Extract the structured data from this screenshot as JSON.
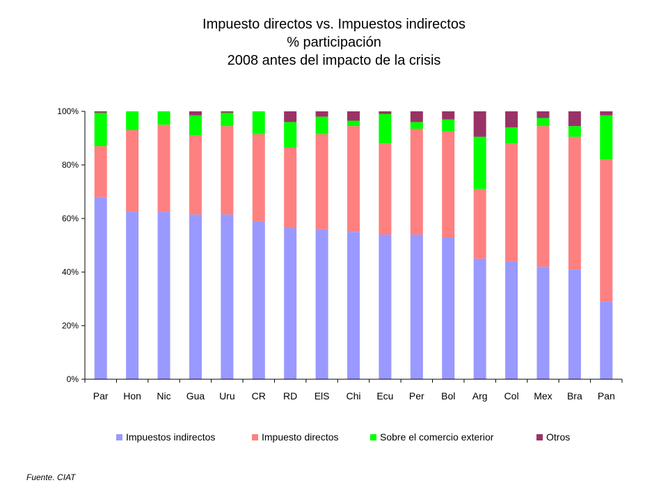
{
  "chart_data": {
    "type": "bar",
    "stacked": true,
    "percent_stacked": true,
    "title": [
      "Impuesto directos vs. Impuestos indirectos",
      "% participación",
      "2008 antes del impacto de la crisis"
    ],
    "categories": [
      "Par",
      "Hon",
      "Nic",
      "Gua",
      "Uru",
      "CR",
      "RD",
      "ElS",
      "Chi",
      "Ecu",
      "Per",
      "Bol",
      "Arg",
      "Col",
      "Mex",
      "Bra",
      "Pan"
    ],
    "series": [
      {
        "name": "Impuestos indirectos",
        "color": "#9999ff",
        "values": [
          68,
          62.5,
          62.5,
          61.5,
          61.5,
          59,
          56.5,
          56,
          55,
          54,
          54,
          53,
          45,
          44,
          42,
          41,
          29
        ]
      },
      {
        "name": "Impuesto directos",
        "color": "#ff8080",
        "values": [
          19,
          30.5,
          32.5,
          29.5,
          33,
          32.5,
          30,
          35.5,
          39.5,
          34,
          39.5,
          39.5,
          26,
          44,
          52.5,
          49.5,
          53
        ]
      },
      {
        "name": "Sobre el comercio exterior",
        "color": "#00ff00",
        "values": [
          12.5,
          7,
          5,
          7.5,
          5,
          8.5,
          9.5,
          6.5,
          2,
          11,
          2.5,
          4.5,
          19.5,
          6,
          3,
          4,
          16.5
        ]
      },
      {
        "name": "Otros",
        "color": "#993366",
        "values": [
          0.5,
          0,
          0,
          1.5,
          0.5,
          0,
          4,
          2,
          3.5,
          1,
          4,
          3,
          9.5,
          6,
          2.5,
          5.5,
          1.5
        ]
      }
    ],
    "y_ticks": [
      "0%",
      "20%",
      "40%",
      "60%",
      "80%",
      "100%"
    ],
    "ylim": [
      0,
      100
    ],
    "xlabel": "",
    "ylabel": "",
    "grid": false,
    "legend_position": "bottom"
  },
  "source_note": "Fuente. CIAT"
}
